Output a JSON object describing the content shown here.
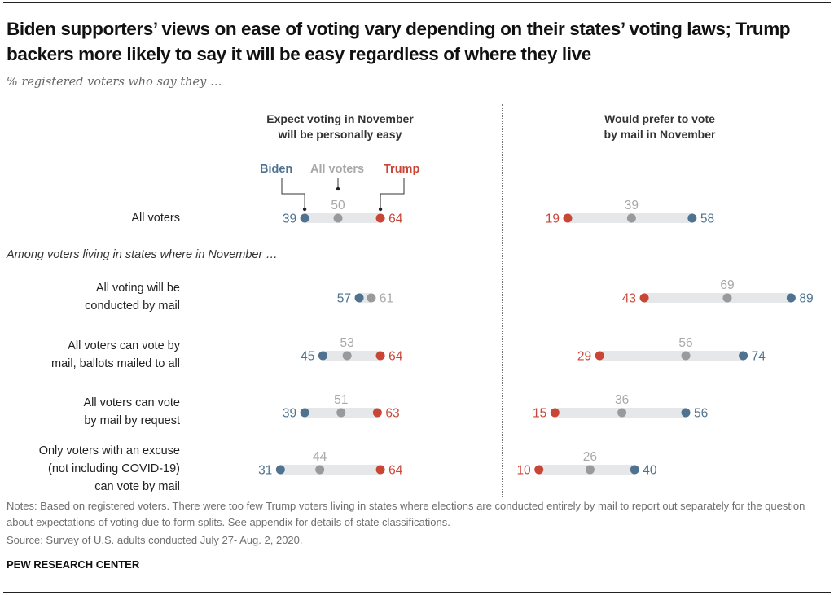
{
  "header": {
    "title": "Biden supporters’ views on ease of voting vary depending on their states’ voting laws; Trump backers more likely to say it will be easy regardless of where they live",
    "subtitle": "% registered voters who say they …"
  },
  "colors": {
    "biden": "#4e7290",
    "all_voters": "#999a9c",
    "all_voters_label": "#a8a8a8",
    "trump": "#c94637",
    "bar": "#e6e7e8"
  },
  "legend": {
    "biden": "Biden",
    "all_voters": "All voters",
    "trump": "Trump"
  },
  "group_label": "Among voters living in states where in November …",
  "rows": [
    {
      "label_lines": [
        "All voters"
      ]
    },
    {
      "label_lines": [
        "All voting will be",
        "conducted by mail"
      ]
    },
    {
      "label_lines": [
        "All voters can vote by",
        "mail, ballots mailed to all"
      ]
    },
    {
      "label_lines": [
        "All voters can vote",
        "by mail by request"
      ]
    },
    {
      "label_lines": [
        "Only voters with an excuse",
        "(not including COVID-19)",
        "can vote by mail"
      ]
    }
  ],
  "chart_data": [
    {
      "type": "dot-range",
      "title": "Expect voting in November will be personally easy",
      "title_lines": [
        "Expect voting in November",
        "will be personally easy"
      ],
      "unit": "%",
      "categories": [
        "All voters",
        "All voting will be conducted by mail",
        "All voters can vote by mail, ballots mailed to all",
        "All voters can vote by mail by request",
        "Only voters with an excuse (not including COVID-19) can vote by mail"
      ],
      "series": [
        {
          "name": "Biden",
          "values": [
            39,
            57,
            45,
            39,
            31
          ]
        },
        {
          "name": "All voters",
          "values": [
            50,
            61,
            53,
            51,
            44
          ]
        },
        {
          "name": "Trump",
          "values": [
            64,
            null,
            64,
            63,
            64
          ]
        }
      ]
    },
    {
      "type": "dot-range",
      "title": "Would prefer to vote by mail in November",
      "title_lines": [
        "Would prefer to vote",
        "by mail in November"
      ],
      "unit": "%",
      "categories": [
        "All voters",
        "All voting will be conducted by mail",
        "All voters can vote by mail, ballots mailed to all",
        "All voters can vote by mail by request",
        "Only voters with an excuse (not including COVID-19) can vote by mail"
      ],
      "series": [
        {
          "name": "Biden",
          "values": [
            58,
            89,
            74,
            56,
            40
          ]
        },
        {
          "name": "All voters",
          "values": [
            39,
            69,
            56,
            36,
            26
          ]
        },
        {
          "name": "Trump",
          "values": [
            19,
            43,
            29,
            15,
            10
          ]
        }
      ]
    }
  ],
  "footer": {
    "notes": "Notes: Based on registered voters. There were too few Trump voters living in states where elections are conducted entirely by mail to report out separately for the question about expectations of voting due to form splits. See appendix for details of state classifications.",
    "source": "Source: Survey of U.S. adults conducted July 27- Aug. 2, 2020.",
    "brand": "PEW RESEARCH CENTER"
  }
}
